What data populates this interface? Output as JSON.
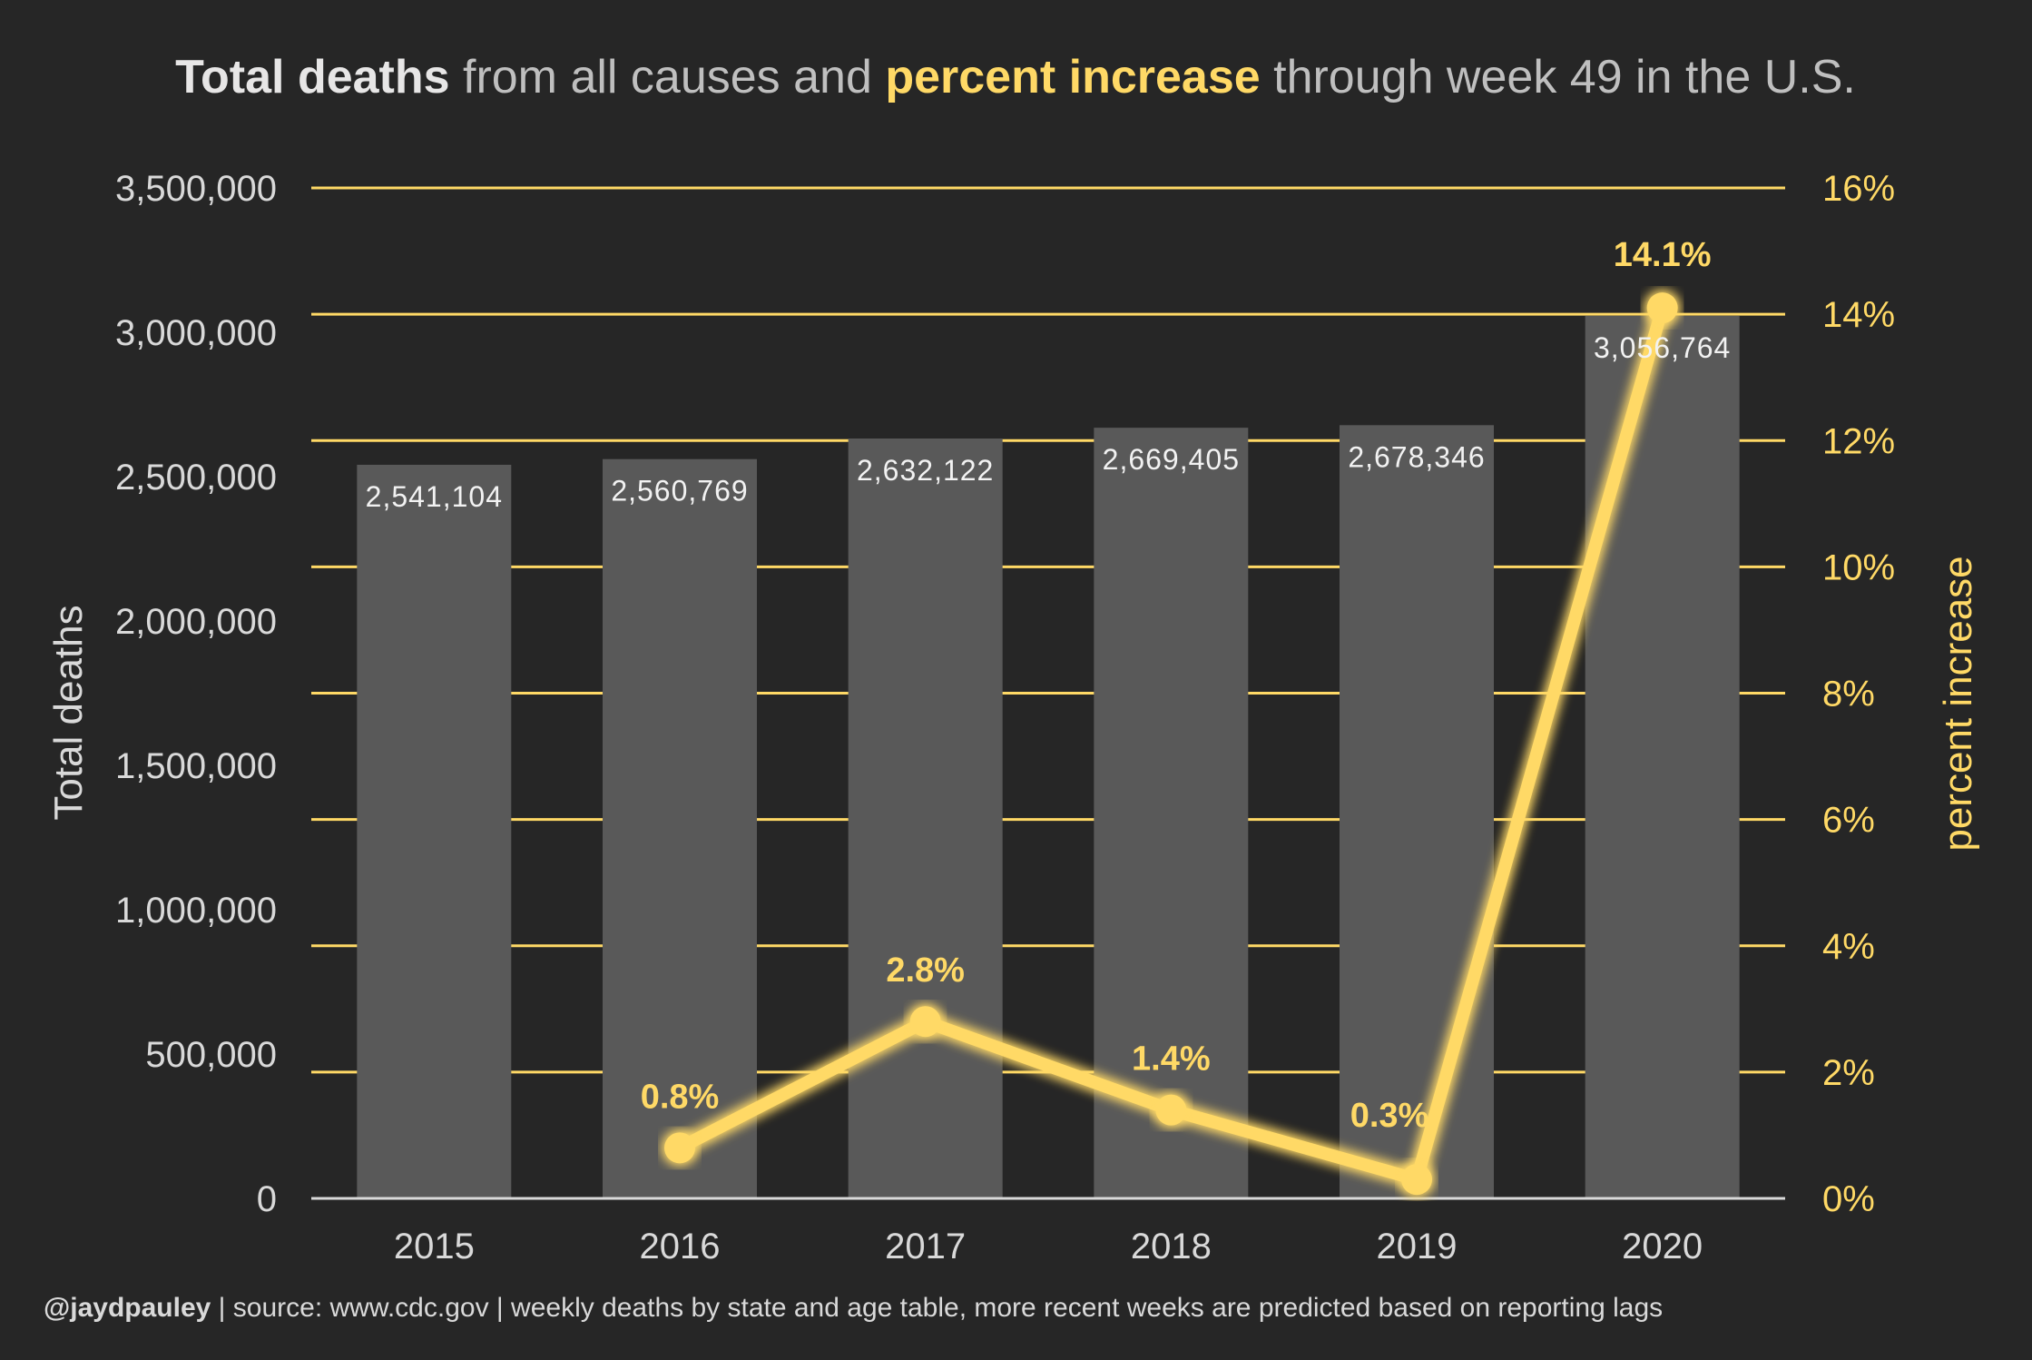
{
  "title": {
    "part1": "Total deaths",
    "part2": " from all causes and ",
    "part3": "percent increase",
    "part4": " through week 49 in the U.S."
  },
  "footer": {
    "handle": "@jaydpauley",
    "text": " | source: www.cdc.gov | weekly deaths by state and age table, more recent weeks are predicted based on reporting lags"
  },
  "colors": {
    "background": "#262626",
    "bar": "#595959",
    "line": "#FFD966",
    "gridline": "#FFD966",
    "axis_text": "#D9D9D9",
    "title_text": "#BFBFBF",
    "title_bold": "#E7E6E6"
  },
  "chart_data": {
    "type": "bar",
    "categories": [
      "2015",
      "2016",
      "2017",
      "2018",
      "2019",
      "2020"
    ],
    "series": [
      {
        "type": "bar",
        "axis": "left",
        "values": [
          2541104,
          2560769,
          2632122,
          2669405,
          2678346,
          3056764
        ],
        "labels": [
          "2,541,104",
          "2,560,769",
          "2,632,122",
          "2,669,405",
          "2,678,346",
          "3,056,764"
        ]
      },
      {
        "type": "line",
        "axis": "right",
        "values": [
          null,
          0.8,
          2.8,
          1.4,
          0.3,
          14.1
        ],
        "labels": [
          "",
          "0.8%",
          "2.8%",
          "1.4%",
          "0.3%",
          "14.1%"
        ]
      }
    ],
    "ylabel": "Total deaths",
    "y2label": "percent increase",
    "ylim": [
      0,
      3500000
    ],
    "y2lim": [
      0,
      16
    ],
    "yticks": [
      "0",
      "500,000",
      "1,000,000",
      "1,500,000",
      "2,000,000",
      "2,500,000",
      "3,000,000",
      "3,500,000"
    ],
    "y2ticks": [
      "0%",
      "2%",
      "4%",
      "6%",
      "8%",
      "10%",
      "12%",
      "14%",
      "16%"
    ],
    "grid": true,
    "legend": "none"
  }
}
